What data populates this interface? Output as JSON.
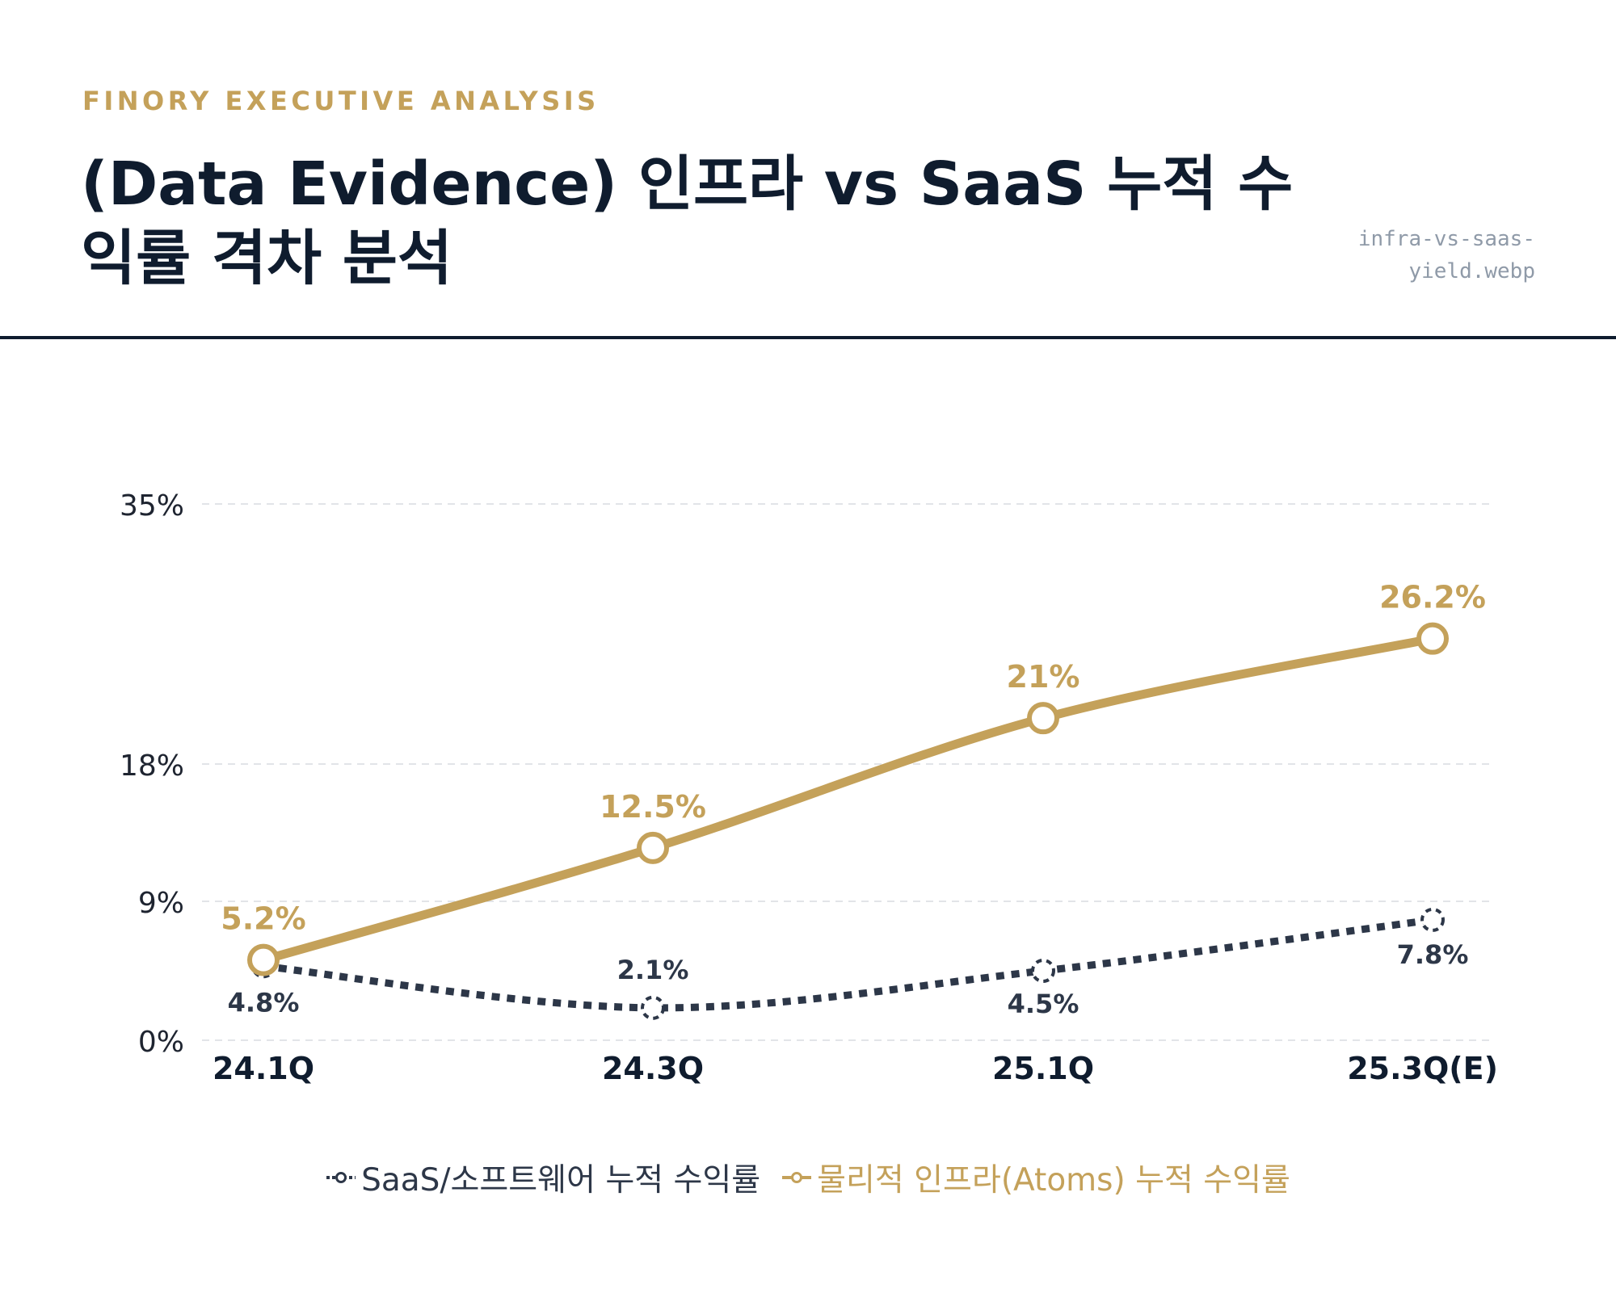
{
  "header": {
    "eyebrow": "FINORY EXECUTIVE ANALYSIS",
    "title": "(Data Evidence) 인프라 vs SaaS 누적 수익률 격차 분석",
    "filename": "infra-vs-saas-yield.webp"
  },
  "chart_data": {
    "type": "line",
    "categories": [
      "24.1Q",
      "24.3Q",
      "25.1Q",
      "25.3Q(E)"
    ],
    "y_ticks": [
      "35%",
      "18%",
      "9%",
      "0%"
    ],
    "y_tick_values": [
      35,
      18,
      9,
      0
    ],
    "ylim": [
      0,
      35
    ],
    "grid": true,
    "legend_position": "bottom",
    "series": [
      {
        "name": "SaaS/소프트웨어 누적 수익률",
        "values": [
          4.8,
          2.1,
          4.5,
          7.8
        ],
        "labels": [
          "4.8%",
          "2.1%",
          "4.5%",
          "7.8%"
        ],
        "color": "#2d3748",
        "style": "dotted"
      },
      {
        "name": "물리적 인프라(Atoms) 누적 수익률",
        "values": [
          5.2,
          12.5,
          21,
          26.2
        ],
        "labels": [
          "5.2%",
          "12.5%",
          "21%",
          "26.2%"
        ],
        "color": "#c4a15a",
        "style": "solid"
      }
    ]
  }
}
